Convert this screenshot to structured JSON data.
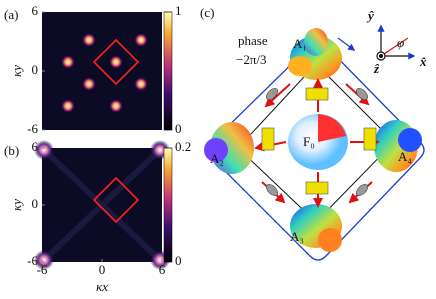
{
  "panels": [
    {
      "label": "(a)",
      "y_label": "κy",
      "ylim": [
        -6,
        6
      ],
      "y_ticks": [
        6,
        0,
        -6
      ],
      "clim": [
        0,
        1
      ],
      "colorbar_ticks": [
        1,
        0
      ]
    },
    {
      "label": "(b)",
      "y_label": "κy",
      "ylim": [
        -6,
        6
      ],
      "y_ticks": [
        6,
        0,
        -6
      ],
      "clim": [
        0,
        0.2
      ],
      "colorbar_ticks": [
        0.2,
        0
      ],
      "x_label": "κx",
      "xlim": [
        -6,
        6
      ],
      "x_ticks": [
        -6,
        0,
        6
      ]
    },
    {
      "label": "(c)",
      "phase_label": "phase",
      "phase_value": "−2π/3",
      "nodes": [
        "A₁",
        "A₂",
        "A₃",
        "A₄",
        "F₀"
      ],
      "axes": [
        "ŷ",
        "x̂",
        "ẑ",
        "φ"
      ]
    }
  ]
}
